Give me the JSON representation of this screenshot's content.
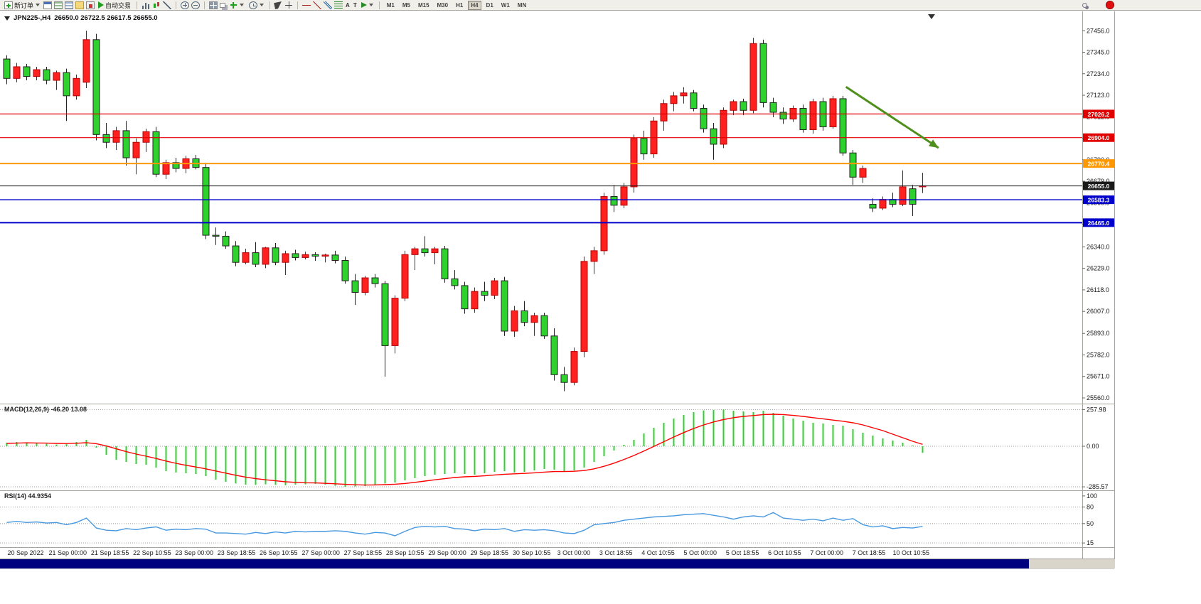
{
  "colors": {
    "bull": "#ff2020",
    "bull_border": "#b80000",
    "bear": "#2fd12f",
    "bear_border": "#222222",
    "macd_hist": "#2fd12f",
    "signal": "#ff0000",
    "rsi": "#4898e0",
    "axis_text": "#1a1a1a",
    "arrow": "#4f8f1c"
  },
  "toolbar": {
    "new_order_label": "新订单",
    "auto_trading_label": "自动交易",
    "text_tool_label": "A",
    "label_tool_label": "T",
    "timeframes": [
      "M1",
      "M5",
      "M15",
      "M30",
      "H1",
      "H4",
      "D1",
      "W1",
      "MN"
    ],
    "active_timeframe": "H4",
    "icons": [
      "new-order-icon",
      "chart-window-icon",
      "market-watch-icon",
      "data-window-icon",
      "navigator-icon",
      "terminal-icon",
      "play-icon",
      "bar-chart-icon",
      "candlestick-icon",
      "line-chart-icon",
      "zoom-in-icon",
      "zoom-out-icon",
      "tile-windows-icon",
      "cascade-windows-icon",
      "add-indicator-icon",
      "period-icon",
      "cursor-icon",
      "crosshair-icon",
      "horizontal-line-icon",
      "trendline-icon",
      "channel-icon",
      "fibonacci-icon",
      "text-icon",
      "text-label-icon",
      "shapes-icon",
      "search-icon",
      "notification-icon",
      "symbol-dropdown-icon",
      "chevron-down-icon",
      "data-end-marker-icon"
    ]
  },
  "chart_header": {
    "symbol_period": "JPN225-,H4",
    "ohlc": "26650.0 26722.5 26617.5 26655.0"
  },
  "chart_data": {
    "type": "candlestick",
    "symbol": "JPN225-",
    "timeframe": "H4",
    "ylim": [
      25560,
      27490
    ],
    "y_ticks": [
      "27456.0",
      "27345.0",
      "27234.0",
      "27123.0",
      "27012.0",
      "26901.0",
      "26790.0",
      "26679.0",
      "26568.0",
      "26457.0",
      "26340.0",
      "26229.0",
      "26118.0",
      "26007.0",
      "25893.0",
      "25782.0",
      "25671.0",
      "25560.0"
    ],
    "x_labels": [
      "20 Sep 2022",
      "21 Sep 00:00",
      "21 Sep 18:55",
      "22 Sep 10:55",
      "23 Sep 00:00",
      "23 Sep 18:55",
      "26 Sep 10:55",
      "27 Sep 00:00",
      "27 Sep 18:55",
      "28 Sep 10:55",
      "29 Sep 00:00",
      "29 Sep 18:55",
      "30 Sep 10:55",
      "3 Oct 00:00",
      "3 Oct 18:55",
      "4 Oct 10:55",
      "5 Oct 00:00",
      "5 Oct 18:55",
      "6 Oct 10:55",
      "7 Oct 00:00",
      "7 Oct 18:55",
      "10 Oct 10:55"
    ],
    "hlines": [
      {
        "label": "27026.2",
        "price": 27026.2,
        "color": "#e00000",
        "width": 1.2
      },
      {
        "label": "26904.0",
        "price": 26904.0,
        "color": "#e00000",
        "width": 1.2
      },
      {
        "label": "26770.4",
        "price": 26770.4,
        "color": "#ff9800",
        "width": 2
      },
      {
        "label": "26655.0",
        "price": 26655.0,
        "color": "#1a1a1a",
        "width": 1
      },
      {
        "label": "26583.3",
        "price": 26583.3,
        "color": "#0000cc",
        "width": 1.4
      },
      {
        "label": "26465.0",
        "price": 26465.0,
        "color": "#0000cc",
        "width": 2
      }
    ],
    "annotations": [
      {
        "type": "arrow",
        "from_index": 84.3,
        "from_price": 27166,
        "to_index": 93.6,
        "to_price": 26851,
        "color": "#4f8f1c"
      }
    ],
    "candles": [
      [
        27310,
        27330,
        27180,
        27210
      ],
      [
        27210,
        27290,
        27190,
        27270
      ],
      [
        27270,
        27285,
        27200,
        27220
      ],
      [
        27220,
        27270,
        27200,
        27255
      ],
      [
        27255,
        27270,
        27180,
        27200
      ],
      [
        27200,
        27250,
        27150,
        27240
      ],
      [
        27240,
        27260,
        26990,
        27120
      ],
      [
        27120,
        27230,
        27100,
        27210
      ],
      [
        27190,
        27456,
        27160,
        27410
      ],
      [
        27410,
        27440,
        26890,
        26920
      ],
      [
        26920,
        26980,
        26850,
        26880
      ],
      [
        26880,
        26960,
        26840,
        26940
      ],
      [
        26940,
        26990,
        26760,
        26800
      ],
      [
        26800,
        26900,
        26715,
        26880
      ],
      [
        26880,
        26950,
        26830,
        26935
      ],
      [
        26935,
        26960,
        26700,
        26715
      ],
      [
        26715,
        26790,
        26690,
        26775
      ],
      [
        26775,
        26800,
        26725,
        26745
      ],
      [
        26745,
        26810,
        26720,
        26795
      ],
      [
        26795,
        26815,
        26740,
        26750
      ],
      [
        26750,
        26770,
        26380,
        26400
      ],
      [
        26400,
        26440,
        26350,
        26395
      ],
      [
        26395,
        26420,
        26330,
        26345
      ],
      [
        26345,
        26370,
        26240,
        26260
      ],
      [
        26260,
        26330,
        26250,
        26310
      ],
      [
        26310,
        26365,
        26235,
        26250
      ],
      [
        26250,
        26340,
        26230,
        26335
      ],
      [
        26335,
        26360,
        26245,
        26260
      ],
      [
        26260,
        26320,
        26195,
        26305
      ],
      [
        26305,
        26325,
        26270,
        26285
      ],
      [
        26285,
        26315,
        26275,
        26300
      ],
      [
        26300,
        26312,
        26268,
        26292
      ],
      [
        26292,
        26305,
        26260,
        26298
      ],
      [
        26298,
        26320,
        26255,
        26270
      ],
      [
        26270,
        26290,
        26150,
        26165
      ],
      [
        26165,
        26200,
        26040,
        26105
      ],
      [
        26105,
        26190,
        26090,
        26180
      ],
      [
        26180,
        26200,
        26130,
        26150
      ],
      [
        26150,
        26165,
        25670,
        25830
      ],
      [
        25830,
        26090,
        25790,
        26075
      ],
      [
        26075,
        26320,
        26060,
        26300
      ],
      [
        26300,
        26340,
        26220,
        26330
      ],
      [
        26330,
        26395,
        26290,
        26310
      ],
      [
        26310,
        26340,
        26250,
        26330
      ],
      [
        26330,
        26345,
        26155,
        26175
      ],
      [
        26175,
        26220,
        26120,
        26140
      ],
      [
        26140,
        26160,
        25995,
        26020
      ],
      [
        26020,
        26130,
        26000,
        26110
      ],
      [
        26110,
        26160,
        26060,
        26090
      ],
      [
        26090,
        26180,
        26070,
        26165
      ],
      [
        26165,
        26185,
        25880,
        25905
      ],
      [
        25905,
        26035,
        25875,
        26010
      ],
      [
        26010,
        26060,
        25930,
        25950
      ],
      [
        25950,
        26000,
        25880,
        25985
      ],
      [
        25985,
        26000,
        25865,
        25880
      ],
      [
        25880,
        25920,
        25650,
        25680
      ],
      [
        25680,
        25720,
        25595,
        25640
      ],
      [
        25640,
        25820,
        25625,
        25800
      ],
      [
        25800,
        26290,
        25770,
        26265
      ],
      [
        26265,
        26340,
        26200,
        26320
      ],
      [
        26320,
        26620,
        26300,
        26600
      ],
      [
        26600,
        26660,
        26520,
        26555
      ],
      [
        26555,
        26670,
        26540,
        26650
      ],
      [
        26650,
        26920,
        26620,
        26900
      ],
      [
        26900,
        26940,
        26790,
        26820
      ],
      [
        26820,
        27010,
        26800,
        26990
      ],
      [
        26990,
        27100,
        26940,
        27080
      ],
      [
        27080,
        27140,
        27040,
        27120
      ],
      [
        27120,
        27165,
        27080,
        27135
      ],
      [
        27135,
        27150,
        27040,
        27055
      ],
      [
        27055,
        27075,
        26930,
        26950
      ],
      [
        26950,
        26980,
        26790,
        26870
      ],
      [
        26870,
        27060,
        26850,
        27045
      ],
      [
        27045,
        27100,
        27020,
        27090
      ],
      [
        27090,
        27105,
        27020,
        27045
      ],
      [
        27045,
        27420,
        27030,
        27390
      ],
      [
        27390,
        27410,
        27060,
        27085
      ],
      [
        27085,
        27110,
        27010,
        27035
      ],
      [
        27035,
        27060,
        26975,
        27000
      ],
      [
        27000,
        27070,
        26985,
        27055
      ],
      [
        27055,
        27075,
        26930,
        26945
      ],
      [
        26945,
        27105,
        26925,
        27090
      ],
      [
        27090,
        27110,
        26940,
        26960
      ],
      [
        26960,
        27120,
        26950,
        27105
      ],
      [
        27105,
        27120,
        26810,
        26825
      ],
      [
        26825,
        26840,
        26660,
        26700
      ],
      [
        26700,
        26760,
        26670,
        26745
      ],
      [
        26560,
        26590,
        26520,
        26540
      ],
      [
        26540,
        26600,
        26530,
        26585
      ],
      [
        26585,
        26620,
        26545,
        26560
      ],
      [
        26560,
        26735,
        26550,
        26650
      ],
      [
        26640,
        26660,
        26500,
        26560
      ],
      [
        26650,
        26722.5,
        26617.5,
        26655
      ]
    ],
    "indicators": [
      {
        "name": "MACD",
        "label": "MACD(12,26,9) -46.20 13.08",
        "ylim": [
          -300,
          285
        ],
        "levels": [
          257.98,
          0,
          -285.57
        ],
        "axis": [
          "257.98",
          "0.00",
          "-285.57"
        ],
        "values": [
          25,
          30,
          28,
          22,
          18,
          12,
          15,
          30,
          45,
          -10,
          -60,
          -95,
          -110,
          -125,
          -130,
          -150,
          -175,
          -185,
          -190,
          -195,
          -210,
          -235,
          -250,
          -262,
          -270,
          -272,
          -268,
          -272,
          -275,
          -270,
          -268,
          -265,
          -270,
          -278,
          -285,
          -283,
          -280,
          -270,
          -262,
          -255,
          -240,
          -225,
          -210,
          -200,
          -195,
          -190,
          -195,
          -200,
          -190,
          -180,
          -175,
          -185,
          -180,
          -170,
          -160,
          -165,
          -175,
          -170,
          -150,
          -110,
          -70,
          -30,
          10,
          45,
          90,
          130,
          165,
          195,
          220,
          240,
          252,
          255,
          258,
          250,
          245,
          240,
          250,
          235,
          215,
          195,
          180,
          165,
          160,
          150,
          145,
          120,
          95,
          75,
          55,
          40,
          25,
          5,
          -46.2
        ],
        "signal": [
          20,
          22,
          24,
          23,
          22,
          20,
          19,
          21,
          25,
          18,
          2,
          -18,
          -38,
          -55,
          -70,
          -86,
          -104,
          -120,
          -134,
          -146,
          -159,
          -174,
          -189,
          -204,
          -217,
          -228,
          -236,
          -243,
          -250,
          -254,
          -257,
          -258,
          -261,
          -264,
          -268,
          -271,
          -273,
          -272,
          -270,
          -267,
          -262,
          -254,
          -245,
          -236,
          -228,
          -220,
          -215,
          -212,
          -208,
          -202,
          -197,
          -194,
          -191,
          -187,
          -182,
          -178,
          -178,
          -176,
          -171,
          -159,
          -141,
          -119,
          -93,
          -65,
          -34,
          -1,
          32,
          65,
          96,
          125,
          150,
          171,
          188,
          201,
          210,
          216,
          223,
          225,
          223,
          217,
          210,
          201,
          193,
          184,
          176,
          165,
          150,
          130,
          110,
          85,
          60,
          35,
          13.08
        ]
      },
      {
        "name": "RSI",
        "label": "RSI(14) 44.9354",
        "ylim": [
          10,
          105
        ],
        "levels": [
          80,
          50,
          15
        ],
        "axis": [
          "100",
          "80",
          "50",
          "15"
        ],
        "values": [
          52,
          54,
          52,
          53,
          51,
          52,
          48,
          52,
          60,
          42,
          38,
          37,
          41,
          39,
          42,
          44,
          38,
          40,
          39,
          41,
          40,
          33,
          33,
          32,
          31,
          34,
          32,
          35,
          33,
          36,
          35,
          36,
          36,
          37,
          36,
          33,
          31,
          34,
          33,
          28,
          36,
          43,
          45,
          44,
          45,
          41,
          40,
          37,
          40,
          39,
          41,
          36,
          39,
          38,
          39,
          37,
          33,
          32,
          38,
          48,
          50,
          52,
          56,
          58,
          60,
          62,
          63,
          64,
          66,
          67,
          68,
          65,
          62,
          58,
          62,
          64,
          62,
          70,
          60,
          58,
          56,
          58,
          55,
          60,
          56,
          59,
          48,
          44,
          46,
          41,
          43,
          42,
          44.94
        ]
      }
    ]
  }
}
